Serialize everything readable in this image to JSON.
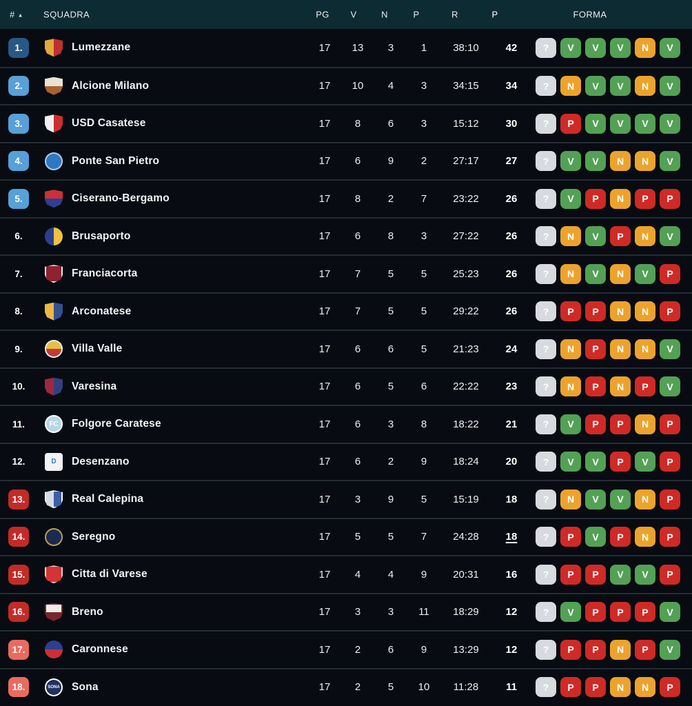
{
  "header": {
    "rank_label": "#",
    "sort_icon": "▲",
    "squadra_label": "SQUADRA",
    "pg_label": "PG",
    "v_label": "V",
    "n_label": "N",
    "p_label": "P",
    "r_label": "R",
    "pts_label": "P",
    "forma_label": "FORMA"
  },
  "colors": {
    "header_bg": "#0d2b32",
    "row_bg": "#080c12",
    "separator": "#262c33",
    "rank_leader": "#2a5786",
    "rank_promotion": "#57a0d8",
    "rank_relegation": "#c22b28",
    "rank_relegation_light": "#ea6a5f",
    "form_win": "#53a155",
    "form_draw": "#eda32b",
    "form_loss": "#cf2a26",
    "form_unknown": "#d7dade"
  },
  "rows": [
    {
      "rank": "1.",
      "rank_style": "top",
      "team": "Lumezzane",
      "pg": "17",
      "v": "13",
      "n": "3",
      "p": "1",
      "r": "38:10",
      "pts": "42",
      "pts_underline": false,
      "form": [
        "?",
        "V",
        "V",
        "V",
        "N",
        "V"
      ],
      "logo": {
        "shape": "shield",
        "split": "v",
        "c1": "#e0a93c",
        "c2": "#c03030",
        "border": "",
        "letter": "",
        "letter_color": ""
      }
    },
    {
      "rank": "2.",
      "rank_style": "promo",
      "team": "Alcione Milano",
      "pg": "17",
      "v": "10",
      "n": "4",
      "p": "3",
      "r": "34:15",
      "pts": "34",
      "pts_underline": false,
      "form": [
        "?",
        "N",
        "V",
        "V",
        "N",
        "V"
      ],
      "logo": {
        "shape": "shield",
        "split": "h",
        "c1": "#e8e2d4",
        "c2": "#a8622e",
        "border": "",
        "letter": "",
        "letter_color": ""
      }
    },
    {
      "rank": "3.",
      "rank_style": "promo",
      "team": "USD Casatese",
      "pg": "17",
      "v": "8",
      "n": "6",
      "p": "3",
      "r": "15:12",
      "pts": "30",
      "pts_underline": false,
      "form": [
        "?",
        "P",
        "V",
        "V",
        "V",
        "V"
      ],
      "logo": {
        "shape": "shield",
        "split": "v",
        "c1": "#f0f0f0",
        "c2": "#cc2f2f",
        "border": "",
        "letter": "",
        "letter_color": ""
      }
    },
    {
      "rank": "4.",
      "rank_style": "promo",
      "team": "Ponte San Pietro",
      "pg": "17",
      "v": "6",
      "n": "9",
      "p": "2",
      "r": "27:17",
      "pts": "27",
      "pts_underline": false,
      "form": [
        "?",
        "V",
        "V",
        "N",
        "N",
        "V"
      ],
      "logo": {
        "shape": "circle",
        "split": "none",
        "c1": "#2f77c0",
        "c2": "",
        "border": "#a8cce8",
        "letter": "",
        "letter_color": ""
      }
    },
    {
      "rank": "5.",
      "rank_style": "promo",
      "team": "Ciserano-Bergamo",
      "pg": "17",
      "v": "8",
      "n": "2",
      "p": "7",
      "r": "23:22",
      "pts": "26",
      "pts_underline": false,
      "form": [
        "?",
        "V",
        "P",
        "N",
        "P",
        "P"
      ],
      "logo": {
        "shape": "shield",
        "split": "h",
        "c1": "#cc3038",
        "c2": "#2c3f92",
        "border": "",
        "letter": "",
        "letter_color": ""
      }
    },
    {
      "rank": "6.",
      "rank_style": "none",
      "team": "Brusaporto",
      "pg": "17",
      "v": "6",
      "n": "8",
      "p": "3",
      "r": "27:22",
      "pts": "26",
      "pts_underline": false,
      "form": [
        "?",
        "N",
        "V",
        "P",
        "N",
        "V"
      ],
      "logo": {
        "shape": "circle",
        "split": "v",
        "c1": "#2c3f8e",
        "c2": "#eec23c",
        "border": "",
        "letter": "",
        "letter_color": ""
      }
    },
    {
      "rank": "7.",
      "rank_style": "none",
      "team": "Franciacorta",
      "pg": "17",
      "v": "7",
      "n": "5",
      "p": "5",
      "r": "25:23",
      "pts": "26",
      "pts_underline": false,
      "form": [
        "?",
        "N",
        "V",
        "N",
        "V",
        "P"
      ],
      "logo": {
        "shape": "shield",
        "split": "none",
        "c1": "#8e2230",
        "c2": "",
        "border": "#e8e8e8",
        "letter": "",
        "letter_color": ""
      }
    },
    {
      "rank": "8.",
      "rank_style": "none",
      "team": "Arconatese",
      "pg": "17",
      "v": "7",
      "n": "5",
      "p": "5",
      "r": "29:22",
      "pts": "26",
      "pts_underline": false,
      "form": [
        "?",
        "P",
        "P",
        "N",
        "N",
        "P"
      ],
      "logo": {
        "shape": "shield",
        "split": "v",
        "c1": "#ecb844",
        "c2": "#35508f",
        "border": "",
        "letter": "",
        "letter_color": ""
      }
    },
    {
      "rank": "9.",
      "rank_style": "none",
      "team": "Villa Valle",
      "pg": "17",
      "v": "6",
      "n": "6",
      "p": "5",
      "r": "21:23",
      "pts": "24",
      "pts_underline": false,
      "form": [
        "?",
        "N",
        "P",
        "N",
        "N",
        "V"
      ],
      "logo": {
        "shape": "circle",
        "split": "h",
        "c1": "#e6c040",
        "c2": "#c43a34",
        "border": "#e8e8e8",
        "letter": "",
        "letter_color": ""
      }
    },
    {
      "rank": "10.",
      "rank_style": "none",
      "team": "Varesina",
      "pg": "17",
      "v": "6",
      "n": "5",
      "p": "6",
      "r": "22:22",
      "pts": "23",
      "pts_underline": false,
      "form": [
        "?",
        "N",
        "P",
        "N",
        "P",
        "V"
      ],
      "logo": {
        "shape": "shield",
        "split": "v",
        "c1": "#9e2840",
        "c2": "#32407e",
        "border": "",
        "letter": "",
        "letter_color": ""
      }
    },
    {
      "rank": "11.",
      "rank_style": "none",
      "team": "Folgore Caratese",
      "pg": "17",
      "v": "6",
      "n": "3",
      "p": "8",
      "r": "18:22",
      "pts": "21",
      "pts_underline": false,
      "form": [
        "?",
        "V",
        "P",
        "P",
        "N",
        "P"
      ],
      "logo": {
        "shape": "circle",
        "split": "none",
        "c1": "#b5d7e8",
        "c2": "",
        "border": "#ffffff",
        "letter": "FC",
        "letter_color": "#ffffff"
      }
    },
    {
      "rank": "12.",
      "rank_style": "none",
      "team": "Desenzano",
      "pg": "17",
      "v": "6",
      "n": "2",
      "p": "9",
      "r": "18:24",
      "pts": "20",
      "pts_underline": false,
      "form": [
        "?",
        "V",
        "V",
        "P",
        "V",
        "P"
      ],
      "logo": {
        "shape": "square",
        "split": "none",
        "c1": "#f2f2f2",
        "c2": "",
        "border": "",
        "letter": "D",
        "letter_color": "#2f80c8"
      }
    },
    {
      "rank": "13.",
      "rank_style": "releg",
      "team": "Real Calepina",
      "pg": "17",
      "v": "3",
      "n": "9",
      "p": "5",
      "r": "15:19",
      "pts": "18",
      "pts_underline": false,
      "form": [
        "?",
        "N",
        "V",
        "V",
        "N",
        "P"
      ],
      "logo": {
        "shape": "shield",
        "split": "v",
        "c1": "#d5dbe2",
        "c2": "#3c5fa5",
        "border": "#ffffff",
        "letter": "",
        "letter_color": ""
      }
    },
    {
      "rank": "14.",
      "rank_style": "releg",
      "team": "Seregno",
      "pg": "17",
      "v": "5",
      "n": "5",
      "p": "7",
      "r": "24:28",
      "pts": "18",
      "pts_underline": true,
      "form": [
        "?",
        "P",
        "V",
        "P",
        "N",
        "P"
      ],
      "logo": {
        "shape": "circle",
        "split": "none",
        "c1": "#1a2a50",
        "c2": "",
        "border": "#bf9e48",
        "letter": "",
        "letter_color": ""
      }
    },
    {
      "rank": "15.",
      "rank_style": "releg",
      "team": "Citta di Varese",
      "pg": "17",
      "v": "4",
      "n": "4",
      "p": "9",
      "r": "20:31",
      "pts": "16",
      "pts_underline": false,
      "form": [
        "?",
        "P",
        "P",
        "V",
        "V",
        "P"
      ],
      "logo": {
        "shape": "shield",
        "split": "none",
        "c1": "#d63434",
        "c2": "",
        "border": "#eccfcf",
        "letter": "",
        "letter_color": ""
      }
    },
    {
      "rank": "16.",
      "rank_style": "releg",
      "team": "Breno",
      "pg": "17",
      "v": "3",
      "n": "3",
      "p": "11",
      "r": "18:29",
      "pts": "12",
      "pts_underline": false,
      "form": [
        "?",
        "V",
        "P",
        "P",
        "P",
        "V"
      ],
      "logo": {
        "shape": "shield",
        "split": "h",
        "c1": "#f0eeea",
        "c2": "#7c232a",
        "border": "#7c232a",
        "letter": "",
        "letter_color": ""
      }
    },
    {
      "rank": "17.",
      "rank_style": "releg2",
      "team": "Caronnese",
      "pg": "17",
      "v": "2",
      "n": "6",
      "p": "9",
      "r": "13:29",
      "pts": "12",
      "pts_underline": false,
      "form": [
        "?",
        "P",
        "P",
        "N",
        "P",
        "V"
      ],
      "logo": {
        "shape": "circle",
        "split": "h",
        "c1": "#2c3f92",
        "c2": "#cc2f38",
        "border": "",
        "letter": "",
        "letter_color": ""
      }
    },
    {
      "rank": "18.",
      "rank_style": "releg2",
      "team": "Sona",
      "pg": "17",
      "v": "2",
      "n": "5",
      "p": "10",
      "r": "11:28",
      "pts": "11",
      "pts_underline": false,
      "form": [
        "?",
        "P",
        "P",
        "N",
        "N",
        "P"
      ],
      "logo": {
        "shape": "circle",
        "split": "none",
        "c1": "#223260",
        "c2": "",
        "border": "#ffffff",
        "letter": "SONA",
        "letter_color": "#ffffff"
      }
    }
  ]
}
